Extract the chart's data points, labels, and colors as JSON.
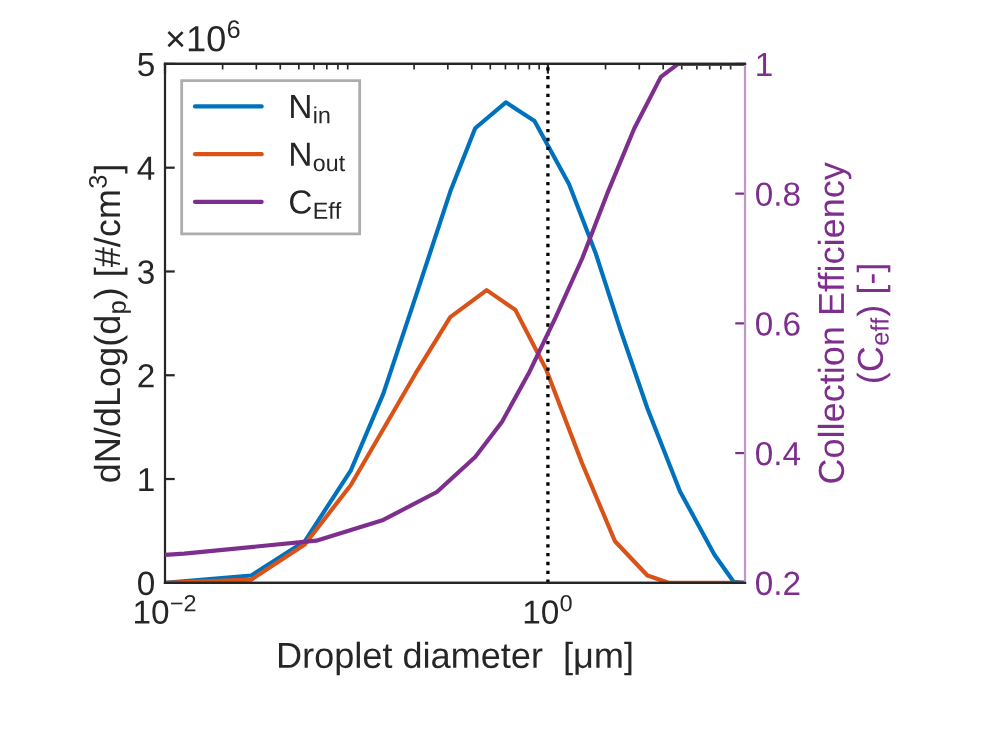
{
  "chart_data": {
    "type": "line",
    "xlabel": "Droplet diameter  [μm]",
    "ylabel": "dN/dLog(d$_{p}$) [#/cm$^{3}$]",
    "y2label": "Collection Efficiency\n(C$_{eff}$) [-]",
    "annotations": [
      "×10$^{6}$"
    ],
    "log": "x",
    "xlim": [
      0.01,
      10.7
    ],
    "xticks": [
      {
        "value": 0.01,
        "label": "10$^{−2}$"
      },
      {
        "value": 1,
        "label": "10$^{0}$"
      }
    ],
    "ylim": [
      0,
      5
    ],
    "yticks": [
      0,
      1,
      2,
      3,
      4,
      5
    ],
    "y2lim": [
      0.2,
      1
    ],
    "y2ticks": [
      0.2,
      0.4,
      0.6,
      0.8,
      1
    ],
    "grid": false,
    "legend": "top left",
    "ref_lines": [
      {
        "axis": "x",
        "value": 1,
        "color": "#000000",
        "line_style": "dotted"
      }
    ],
    "series": [
      {
        "name": "N$_{in}$",
        "color": "#0072bd",
        "x": [
          0.01,
          0.0282,
          0.0537,
          0.0933,
          0.138,
          0.204,
          0.309,
          0.417,
          0.603,
          0.851,
          1.29,
          1.78,
          2.4,
          3.31,
          4.9,
          7.41,
          9.33,
          10.7
        ],
        "values": [
          0,
          0.07,
          0.4,
          1.08,
          1.82,
          2.76,
          3.77,
          4.38,
          4.63,
          4.45,
          3.84,
          3.17,
          2.43,
          1.68,
          0.88,
          0.27,
          0.01,
          0
        ]
      },
      {
        "name": "N$_{out}$",
        "color": "#d95319",
        "x": [
          0.01,
          0.0282,
          0.0537,
          0.0933,
          0.138,
          0.204,
          0.309,
          0.479,
          0.676,
          0.977,
          1.51,
          2.24,
          3.31,
          4.27,
          10.7
        ],
        "values": [
          0,
          0.03,
          0.37,
          0.94,
          1.48,
          2.02,
          2.56,
          2.82,
          2.63,
          2.06,
          1.15,
          0.4,
          0.07,
          0,
          0
        ]
      },
      {
        "name": "C$_{Eff}$",
        "color": "#7e2f8e",
        "axis": "y2",
        "x": [
          0.01,
          0.0126,
          0.0617,
          0.138,
          0.263,
          0.417,
          0.575,
          0.794,
          1.1,
          1.51,
          2.04,
          2.82,
          3.89,
          4.79,
          10.7
        ],
        "values": [
          0.243,
          0.245,
          0.265,
          0.297,
          0.34,
          0.394,
          0.448,
          0.523,
          0.61,
          0.7,
          0.8,
          0.9,
          0.98,
          1.0,
          1.0
        ]
      }
    ]
  }
}
